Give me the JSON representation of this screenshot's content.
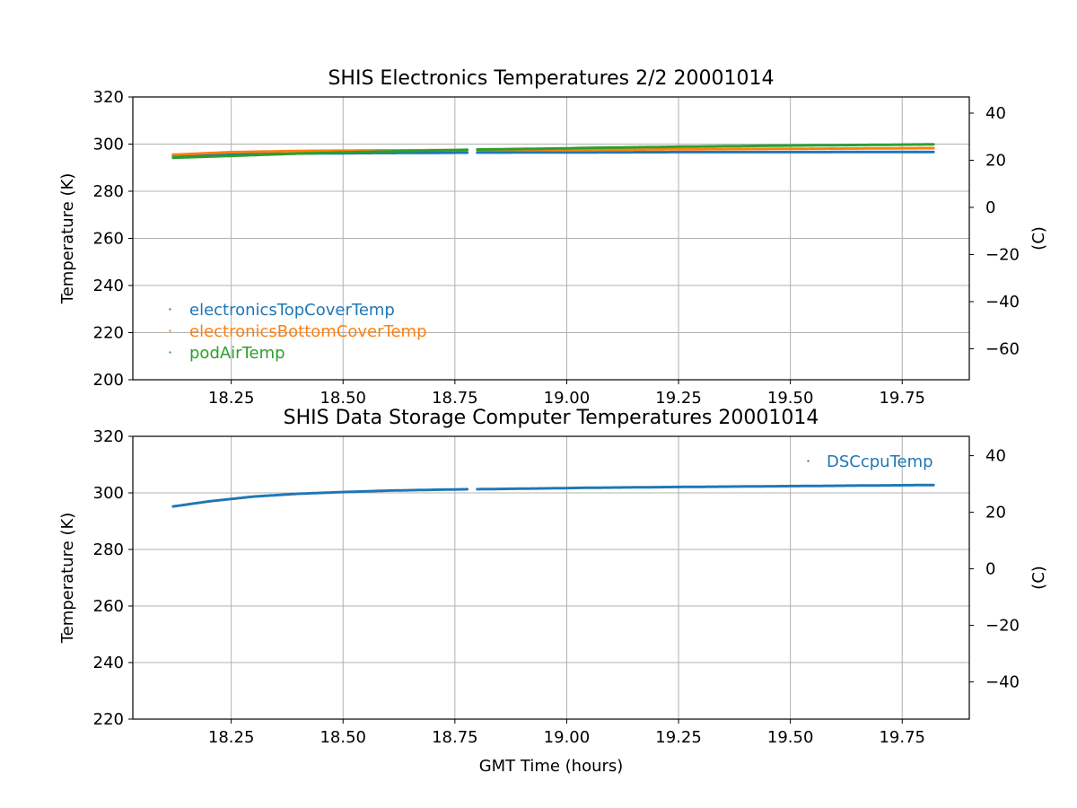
{
  "chart_data": [
    {
      "type": "scatter",
      "title": "SHIS Electronics Temperatures 2/2 20001014",
      "xlabel": "",
      "ylabel": "Temperature (K)",
      "y2label": "(C)",
      "xlim": [
        18.03,
        19.9
      ],
      "ylim": [
        200,
        320
      ],
      "y2lim": [
        -73.15,
        46.85
      ],
      "x_ticks": [
        "18.25",
        "18.50",
        "18.75",
        "19.00",
        "19.25",
        "19.50",
        "19.75"
      ],
      "y_ticks": [
        "200",
        "220",
        "240",
        "260",
        "280",
        "300",
        "320"
      ],
      "y2_ticks": [
        "−60",
        "−40",
        "−20",
        "0",
        "20",
        "40"
      ],
      "grid": true,
      "legend_position": "lower-left",
      "gaps": [
        [
          18.785,
          18.795
        ],
        [
          19.03,
          19.04
        ]
      ],
      "series": [
        {
          "name": "electronicsTopCoverTemp",
          "color": "#1f77b4",
          "x": [
            18.12,
            18.25,
            18.4,
            18.55,
            18.7,
            18.78,
            18.8,
            19.0,
            19.04,
            19.25,
            19.5,
            19.82
          ],
          "y": [
            295.0,
            295.6,
            296.0,
            296.2,
            296.3,
            296.4,
            296.4,
            296.5,
            296.5,
            296.6,
            296.6,
            296.7
          ]
        },
        {
          "name": "electronicsBottomCoverTemp",
          "color": "#ff7f0e",
          "x": [
            18.12,
            18.25,
            18.4,
            18.55,
            18.7,
            18.78,
            18.8,
            19.0,
            19.04,
            19.25,
            19.5,
            19.82
          ],
          "y": [
            295.5,
            296.6,
            297.1,
            297.3,
            297.4,
            297.5,
            297.5,
            297.6,
            297.6,
            297.8,
            298.0,
            298.3
          ]
        },
        {
          "name": "podAirTemp",
          "color": "#2ca02c",
          "x": [
            18.12,
            18.25,
            18.4,
            18.55,
            18.7,
            18.78,
            18.8,
            19.0,
            19.04,
            19.25,
            19.5,
            19.82
          ],
          "y": [
            294.2,
            295.0,
            296.0,
            296.7,
            297.3,
            297.6,
            297.7,
            298.2,
            298.4,
            298.9,
            299.4,
            299.9
          ]
        }
      ]
    },
    {
      "type": "scatter",
      "title": "SHIS Data Storage Computer Temperatures 20001014",
      "xlabel": "GMT Time (hours)",
      "ylabel": "Temperature (K)",
      "y2label": "(C)",
      "xlim": [
        18.03,
        19.9
      ],
      "ylim": [
        220,
        320
      ],
      "y2lim": [
        -53.15,
        46.85
      ],
      "x_ticks": [
        "18.25",
        "18.50",
        "18.75",
        "19.00",
        "19.25",
        "19.50",
        "19.75"
      ],
      "y_ticks": [
        "220",
        "240",
        "260",
        "280",
        "300",
        "320"
      ],
      "y2_ticks": [
        "−40",
        "−20",
        "0",
        "20",
        "40"
      ],
      "grid": true,
      "legend_position": "upper-right",
      "gaps": [
        [
          18.785,
          18.795
        ],
        [
          19.03,
          19.04
        ]
      ],
      "series": [
        {
          "name": "DSCcpuTemp",
          "color": "#1f77b4",
          "x": [
            18.12,
            18.2,
            18.3,
            18.4,
            18.5,
            18.6,
            18.7,
            18.78,
            18.8,
            19.0,
            19.04,
            19.25,
            19.5,
            19.82
          ],
          "y": [
            295.2,
            297.0,
            298.7,
            299.7,
            300.3,
            300.8,
            301.1,
            301.3,
            301.3,
            301.7,
            301.8,
            302.1,
            302.4,
            302.8
          ]
        }
      ]
    }
  ]
}
